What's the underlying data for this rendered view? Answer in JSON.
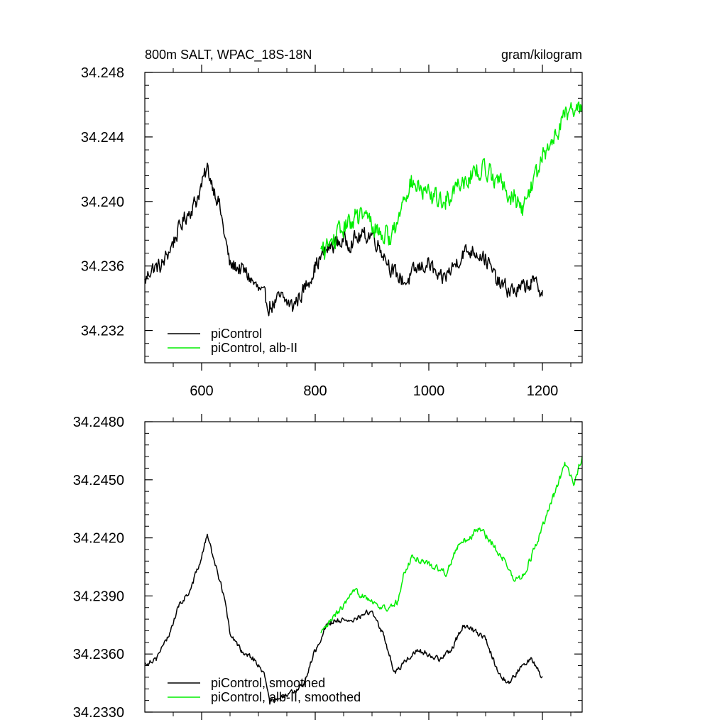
{
  "chart_data": [
    {
      "type": "line",
      "title_left": "800m SALT, WPAC_18S-18N",
      "title_right": "gram/kilogram",
      "xlim": [
        500,
        1270
      ],
      "ylim": [
        34.23,
        34.248
      ],
      "x_ticks": [
        600,
        800,
        1000,
        1200
      ],
      "x_tick_labels": [
        "600",
        "800",
        "1000",
        "1200"
      ],
      "y_ticks": [
        34.232,
        34.236,
        34.24,
        34.244,
        34.248
      ],
      "y_tick_labels": [
        "34.232",
        "34.236",
        "34.240",
        "34.244",
        "34.248"
      ],
      "legend_position": "bottom-left",
      "series": [
        {
          "name": "piControl",
          "color": "#000000",
          "noise": 0.0009,
          "points": [
            [
              500,
              34.235
            ],
            [
              510,
              34.2358
            ],
            [
              530,
              34.236
            ],
            [
              550,
              34.2375
            ],
            [
              570,
              34.239
            ],
            [
              590,
              34.24
            ],
            [
              600,
              34.241
            ],
            [
              610,
              34.242
            ],
            [
              620,
              34.241
            ],
            [
              630,
              34.24
            ],
            [
              640,
              34.238
            ],
            [
              650,
              34.236
            ],
            [
              660,
              34.236
            ],
            [
              680,
              34.2355
            ],
            [
              700,
              34.2345
            ],
            [
              720,
              34.2335
            ],
            [
              740,
              34.234
            ],
            [
              760,
              34.2335
            ],
            [
              780,
              34.2345
            ],
            [
              800,
              34.236
            ],
            [
              820,
              34.237
            ],
            [
              840,
              34.2375
            ],
            [
              860,
              34.2375
            ],
            [
              880,
              34.2378
            ],
            [
              900,
              34.238
            ],
            [
              920,
              34.2368
            ],
            [
              940,
              34.2355
            ],
            [
              960,
              34.235
            ],
            [
              980,
              34.2358
            ],
            [
              1000,
              34.2362
            ],
            [
              1020,
              34.235
            ],
            [
              1040,
              34.2358
            ],
            [
              1060,
              34.2368
            ],
            [
              1080,
              34.237
            ],
            [
              1100,
              34.2365
            ],
            [
              1120,
              34.235
            ],
            [
              1140,
              34.2345
            ],
            [
              1160,
              34.2345
            ],
            [
              1180,
              34.235
            ],
            [
              1200,
              34.2345
            ]
          ]
        },
        {
          "name": "piControl, alb-II",
          "color": "#00ee00",
          "noise": 0.0011,
          "points": [
            [
              810,
              34.2368
            ],
            [
              830,
              34.2375
            ],
            [
              850,
              34.2383
            ],
            [
              870,
              34.239
            ],
            [
              890,
              34.239
            ],
            [
              910,
              34.2382
            ],
            [
              930,
              34.2378
            ],
            [
              945,
              34.2385
            ],
            [
              955,
              34.2405
            ],
            [
              970,
              34.2412
            ],
            [
              990,
              34.2405
            ],
            [
              1010,
              34.2402
            ],
            [
              1030,
              34.24
            ],
            [
              1050,
              34.2412
            ],
            [
              1070,
              34.2415
            ],
            [
              1090,
              34.242
            ],
            [
              1110,
              34.2418
            ],
            [
              1130,
              34.241
            ],
            [
              1150,
              34.2402
            ],
            [
              1165,
              34.2395
            ],
            [
              1180,
              34.241
            ],
            [
              1200,
              34.2425
            ],
            [
              1220,
              34.244
            ],
            [
              1240,
              34.2455
            ],
            [
              1255,
              34.2455
            ],
            [
              1270,
              34.246
            ]
          ]
        }
      ]
    },
    {
      "type": "line",
      "xlim": [
        500,
        1270
      ],
      "ylim": [
        34.233,
        34.248
      ],
      "x_ticks": [
        600,
        800,
        1000,
        1200
      ],
      "y_ticks": [
        34.233,
        34.236,
        34.239,
        34.242,
        34.245,
        34.248
      ],
      "y_tick_labels": [
        "34.2330",
        "34.2360",
        "34.2390",
        "34.2420",
        "34.2450",
        "34.2480"
      ],
      "legend_position": "bottom-left",
      "series": [
        {
          "name": "piControl, smoothed",
          "color": "#000000",
          "noise": 0.00025,
          "points": [
            [
              500,
              34.2355
            ],
            [
              520,
              34.2358
            ],
            [
              540,
              34.2368
            ],
            [
              560,
              34.2385
            ],
            [
              580,
              34.2393
            ],
            [
              600,
              34.241
            ],
            [
              610,
              34.2422
            ],
            [
              620,
              34.241
            ],
            [
              630,
              34.24
            ],
            [
              640,
              34.239
            ],
            [
              650,
              34.237
            ],
            [
              670,
              34.2362
            ],
            [
              690,
              34.2358
            ],
            [
              710,
              34.235
            ],
            [
              720,
              34.2335
            ],
            [
              740,
              34.2337
            ],
            [
              760,
              34.234
            ],
            [
              780,
              34.2345
            ],
            [
              800,
              34.2362
            ],
            [
              820,
              34.2375
            ],
            [
              840,
              34.2378
            ],
            [
              860,
              34.2376
            ],
            [
              880,
              34.238
            ],
            [
              900,
              34.2382
            ],
            [
              920,
              34.237
            ],
            [
              940,
              34.235
            ],
            [
              960,
              34.2357
            ],
            [
              980,
              34.2362
            ],
            [
              1000,
              34.236
            ],
            [
              1020,
              34.2357
            ],
            [
              1040,
              34.2362
            ],
            [
              1060,
              34.2375
            ],
            [
              1080,
              34.2372
            ],
            [
              1100,
              34.2368
            ],
            [
              1120,
              34.2352
            ],
            [
              1140,
              34.2345
            ],
            [
              1160,
              34.2352
            ],
            [
              1180,
              34.2358
            ],
            [
              1200,
              34.2348
            ]
          ]
        },
        {
          "name": "piControl, alb-II, smoothed",
          "color": "#00ee00",
          "noise": 0.0003,
          "points": [
            [
              810,
              34.237
            ],
            [
              830,
              34.2378
            ],
            [
              850,
              34.2385
            ],
            [
              870,
              34.2392
            ],
            [
              890,
              34.239
            ],
            [
              910,
              34.2385
            ],
            [
              930,
              34.2383
            ],
            [
              945,
              34.2387
            ],
            [
              955,
              34.24
            ],
            [
              970,
              34.241
            ],
            [
              990,
              34.2408
            ],
            [
              1010,
              34.2405
            ],
            [
              1030,
              34.2402
            ],
            [
              1050,
              34.2415
            ],
            [
              1070,
              34.242
            ],
            [
              1090,
              34.2425
            ],
            [
              1110,
              34.2418
            ],
            [
              1130,
              34.241
            ],
            [
              1150,
              34.2398
            ],
            [
              1165,
              34.24
            ],
            [
              1180,
              34.241
            ],
            [
              1200,
              34.2425
            ],
            [
              1220,
              34.2442
            ],
            [
              1240,
              34.2458
            ],
            [
              1255,
              34.2448
            ],
            [
              1270,
              34.2462
            ]
          ]
        }
      ]
    }
  ]
}
